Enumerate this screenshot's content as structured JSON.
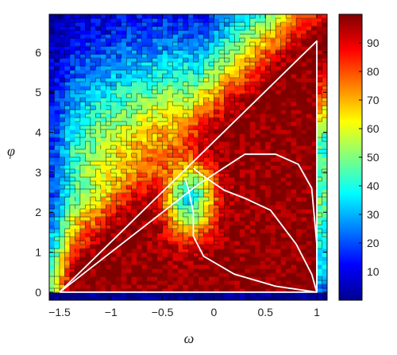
{
  "chart_data": {
    "type": "heatmap",
    "title": "",
    "xlabel": "ω",
    "ylabel": "φ",
    "xlim": [
      -1.6,
      1.1
    ],
    "ylim": [
      -0.2,
      6.95
    ],
    "x_ticks": [
      -1.5,
      -1,
      -0.5,
      0,
      0.5,
      1
    ],
    "x_tick_labels": [
      "−1.5",
      "−1",
      "−0.5",
      "0",
      "0.5",
      "1"
    ],
    "y_ticks": [
      0,
      1,
      2,
      3,
      4,
      5,
      6
    ],
    "y_tick_labels": [
      "0",
      "1",
      "2",
      "3",
      "4",
      "5",
      "6"
    ],
    "colorbar": {
      "range": [
        0,
        100
      ],
      "ticks": [
        10,
        20,
        30,
        40,
        50,
        60,
        70,
        80,
        90
      ],
      "tick_labels": [
        "10",
        "20",
        "30",
        "40",
        "50",
        "60",
        "70",
        "80",
        "90"
      ],
      "colormap": "jet"
    },
    "contour_levels": [
      10,
      20,
      30,
      40,
      50,
      60,
      70,
      80,
      90
    ],
    "grid": false,
    "colors": {
      "low": "#00008f",
      "mid": "#80ff80",
      "high": "#800000",
      "overlay": "#ffffff"
    },
    "overlay_curves": [
      {
        "points": [
          [
            -1.5,
            0
          ],
          [
            1.0,
            6.28
          ],
          [
            1.0,
            0
          ],
          [
            -1.5,
            0
          ]
        ]
      },
      {
        "points": [
          [
            -1.5,
            0
          ],
          [
            -0.15,
            2.7
          ],
          [
            0.3,
            3.45
          ],
          [
            0.6,
            3.45
          ],
          [
            0.82,
            3.2
          ],
          [
            0.95,
            2.6
          ],
          [
            1.0,
            1.2
          ],
          [
            1.0,
            0
          ]
        ]
      },
      {
        "points": [
          [
            -0.2,
            3.1
          ],
          [
            -0.1,
            2.9
          ],
          [
            0.1,
            2.55
          ],
          [
            0.3,
            2.35
          ],
          [
            0.55,
            2.05
          ],
          [
            0.8,
            1.2
          ],
          [
            0.95,
            0.45
          ],
          [
            1.0,
            0
          ]
        ]
      },
      {
        "points": [
          [
            -0.28,
            2.85
          ],
          [
            -0.25,
            2.6
          ],
          [
            -0.2,
            2.0
          ],
          [
            -0.2,
            1.4
          ],
          [
            -0.1,
            0.9
          ],
          [
            0.2,
            0.45
          ],
          [
            0.6,
            0.15
          ],
          [
            1.0,
            0
          ]
        ]
      }
    ]
  }
}
